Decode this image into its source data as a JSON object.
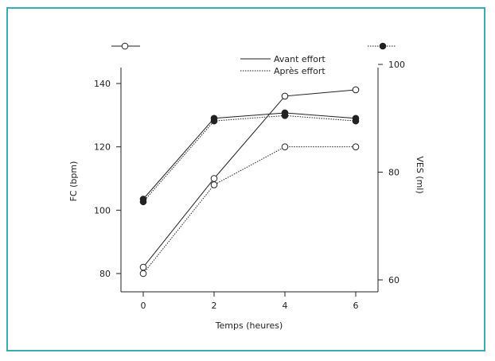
{
  "chart_data": {
    "type": "line",
    "xlabel": "Temps (heures)",
    "ylabel_left": "FC (bpm)",
    "ylabel_right": "VES (ml)",
    "x": [
      0,
      2,
      4,
      6
    ],
    "x_ticks": [
      "0",
      "2",
      "4",
      "6"
    ],
    "ylim_left": [
      75,
      145
    ],
    "yticks_left": [
      "80",
      "100",
      "120",
      "140"
    ],
    "ylim_right": [
      58,
      100
    ],
    "yticks_right": [
      "60",
      "80",
      "100"
    ],
    "legend": {
      "placement": "top",
      "entries": [
        {
          "label": "Avant effort",
          "style": "solid"
        },
        {
          "label": "Après effort",
          "style": "dotted"
        }
      ]
    },
    "marker_key": {
      "open_circle_axis": "left",
      "filled_circle_axis": "right"
    },
    "series": [
      {
        "condition": "Avant effort",
        "axis": "left",
        "marker": "open",
        "line": "solid",
        "values": [
          82,
          110,
          136,
          138
        ]
      },
      {
        "condition": "Après effort",
        "axis": "left",
        "marker": "open",
        "line": "dotted",
        "values": [
          80,
          108,
          120,
          120
        ]
      },
      {
        "condition": "Avant effort",
        "axis": "right",
        "marker": "filled",
        "line": "solid",
        "values": [
          75,
          90,
          91,
          90
        ]
      },
      {
        "condition": "Après effort",
        "axis": "right",
        "marker": "filled",
        "line": "dotted",
        "values": [
          74.5,
          89.5,
          90.5,
          89.5
        ]
      }
    ],
    "grid": false
  },
  "colors": {
    "frame": "#3aaab4",
    "ink": "#222222"
  }
}
